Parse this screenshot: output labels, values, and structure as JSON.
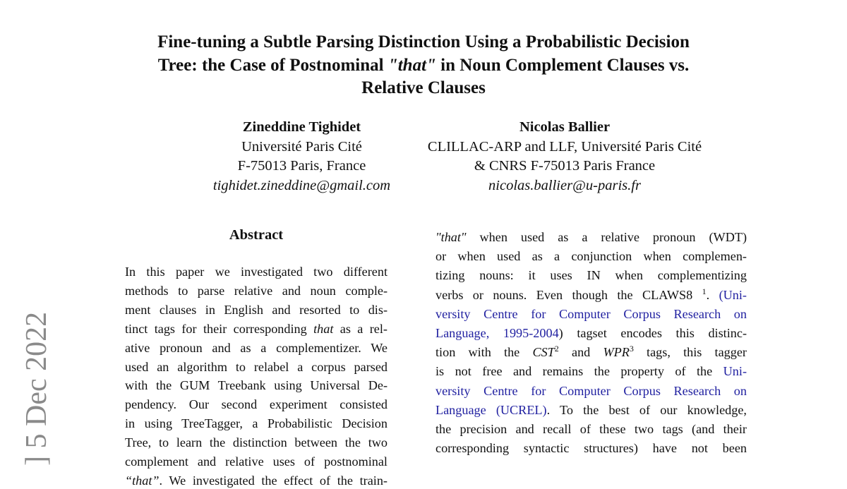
{
  "title": {
    "lines": [
      [
        {
          "t": "Fine-tuning a Subtle Parsing Distinction Using a Probabilistic Decision"
        }
      ],
      [
        {
          "t": "Tree: the Case of Postnominal "
        },
        {
          "t": "\"that\"",
          "s": "i"
        },
        {
          "t": " in Noun Complement Clauses vs."
        }
      ],
      [
        {
          "t": "Relative Clauses"
        }
      ]
    ]
  },
  "authors": [
    {
      "name": "Zineddine Tighidet",
      "affil1": "Université Paris Cité",
      "affil2": "F-75013 Paris, France",
      "email": "tighidet.zineddine@gmail.com"
    },
    {
      "name": "Nicolas Ballier",
      "affil1": "CLILLAC-ARP and LLF, Université Paris Cité",
      "affil2": "& CNRS F-75013 Paris France",
      "email": "nicolas.ballier@u-paris.fr"
    }
  ],
  "abstract_heading": "Abstract",
  "left_lines": [
    [
      {
        "t": "In this paper we investigated two different"
      }
    ],
    [
      {
        "t": "methods to parse relative and noun comple-"
      }
    ],
    [
      {
        "t": "ment clauses in English and resorted to dis-"
      }
    ],
    [
      {
        "t": "tinct tags for their corresponding "
      },
      {
        "t": "that",
        "s": "i"
      },
      {
        "t": " as a rel-"
      }
    ],
    [
      {
        "t": "ative pronoun and as a complementizer.  We"
      }
    ],
    [
      {
        "t": "used an algorithm to relabel a corpus parsed"
      }
    ],
    [
      {
        "t": "with the GUM Treebank using Universal De-"
      }
    ],
    [
      {
        "t": "pendency.  Our second experiment consisted"
      }
    ],
    [
      {
        "t": "in using TreeTagger, a Probabilistic Decision"
      }
    ],
    [
      {
        "t": "Tree, to learn the distinction between the two"
      }
    ],
    [
      {
        "t": "complement and relative uses of postnominal"
      }
    ],
    [
      {
        "t": "“that”",
        "s": "i"
      },
      {
        "t": ". We investigated the effect of the train-"
      }
    ]
  ],
  "right_lines": [
    [
      {
        "t": "\"that\"",
        "s": "i"
      },
      {
        "t": " when used as a relative pronoun (WDT)"
      }
    ],
    [
      {
        "t": "or when used as a conjunction when complemen-"
      }
    ],
    [
      {
        "t": "tizing nouns:  it uses IN when complementizing"
      }
    ],
    [
      {
        "t": "verbs or nouns. Even though the CLAWS8 "
      },
      {
        "t": "1",
        "s": "sup"
      },
      {
        "t": ". "
      },
      {
        "t": "(Uni-",
        "s": "a"
      }
    ],
    [
      {
        "t": "versity Centre for Computer Corpus Research on",
        "s": "a"
      }
    ],
    [
      {
        "t": "Language, 1995-2004",
        "s": "a"
      },
      {
        "t": ") tagset encodes this distinc-"
      }
    ],
    [
      {
        "t": "tion with the "
      },
      {
        "t": "CST",
        "s": "i"
      },
      {
        "t": "2",
        "s": "sup"
      },
      {
        "t": " and "
      },
      {
        "t": "WPR",
        "s": "i"
      },
      {
        "t": "3",
        "s": "sup"
      },
      {
        "t": " tags, this tagger"
      }
    ],
    [
      {
        "t": "is not free and remains the property of the "
      },
      {
        "t": "Uni-",
        "s": "a"
      }
    ],
    [
      {
        "t": "versity Centre for Computer Corpus Research on",
        "s": "a"
      }
    ],
    [
      {
        "t": "Language (UCREL)",
        "s": "a"
      },
      {
        "t": ". To the best of our knowledge,"
      }
    ],
    [
      {
        "t": "the precision and recall of these two tags (and their"
      }
    ],
    [
      {
        "t": "corresponding syntactic structures) have not been"
      }
    ]
  ],
  "arxiv_stamp": "] 5 Dec 2022",
  "colors": {
    "link": "#1f1fa0",
    "stamp": "#8a8a8a",
    "text": "#111111"
  }
}
